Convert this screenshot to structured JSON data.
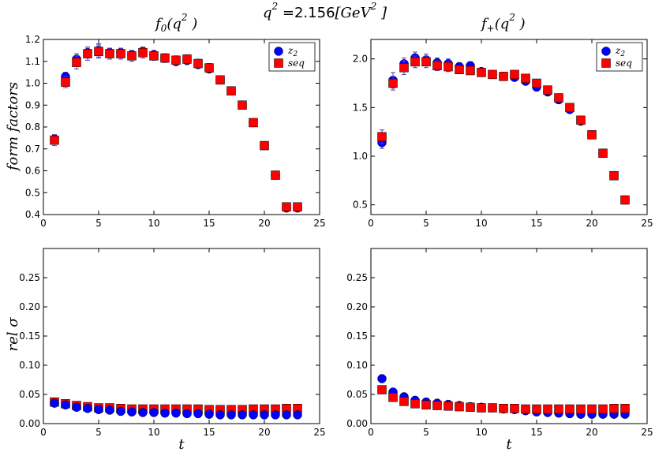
{
  "figure": {
    "suptitle_q": "q",
    "suptitle_exp": "2",
    "suptitle_eq": " =",
    "suptitle_value": "2.156",
    "suptitle_unit": "[GeV",
    "suptitle_unit_exp": "2",
    "suptitle_unit_close": " ]"
  },
  "colors": {
    "z2": "#0000ff",
    "seq": "#ff0000",
    "err": "#5a3db8"
  },
  "chart_data": [
    {
      "type": "scatter",
      "panel": "top-left",
      "title_main": "f",
      "title_sub": "0",
      "title_arg": "(q",
      "title_exp": "2",
      "title_close": " )",
      "ylabel": "form factors",
      "xlabel": "",
      "xlim": [
        0,
        25
      ],
      "ylim": [
        0.4,
        1.2
      ],
      "xticks": [
        0,
        5,
        10,
        15,
        20,
        25
      ],
      "yticks": [
        "0.4",
        "0.5",
        "0.6",
        "0.7",
        "0.8",
        "0.9",
        "1.0",
        "1.1",
        "1.2"
      ],
      "legend": [
        "z",
        "seq"
      ],
      "legend_z_sub": "2",
      "legend_loc": "top-right",
      "series": [
        {
          "name": "z2",
          "marker": "circle",
          "x": [
            1,
            2,
            3,
            4,
            5,
            6,
            7,
            8,
            9,
            10,
            11,
            12,
            13,
            14,
            15,
            16,
            17,
            18,
            19,
            20,
            21,
            22,
            23
          ],
          "y": [
            0.745,
            1.03,
            1.11,
            1.14,
            1.15,
            1.14,
            1.14,
            1.13,
            1.145,
            1.13,
            1.115,
            1.1,
            1.105,
            1.085,
            1.065,
            1.015,
            0.965,
            0.9,
            0.82,
            0.715,
            0.58,
            0.43,
            0.43
          ],
          "err": [
            0.02,
            0.02,
            0.025,
            0.025,
            0.03,
            0.02,
            0.02,
            0.02,
            0.02,
            0.02,
            0.02,
            0.02,
            0.02,
            0.015,
            0.015,
            0.015,
            0.012,
            0.012,
            0.012,
            0.012,
            0.01,
            0.01,
            0.01
          ]
        },
        {
          "name": "seq",
          "marker": "square",
          "x": [
            1,
            2,
            3,
            4,
            5,
            6,
            7,
            8,
            9,
            10,
            11,
            12,
            13,
            14,
            15,
            16,
            17,
            18,
            19,
            20,
            21,
            22,
            23
          ],
          "y": [
            0.74,
            1.005,
            1.095,
            1.135,
            1.145,
            1.135,
            1.135,
            1.125,
            1.14,
            1.125,
            1.115,
            1.105,
            1.11,
            1.09,
            1.07,
            1.015,
            0.965,
            0.9,
            0.82,
            0.715,
            0.58,
            0.435,
            0.435
          ],
          "err": [
            0.025,
            0.025,
            0.03,
            0.03,
            0.03,
            0.025,
            0.025,
            0.025,
            0.025,
            0.02,
            0.02,
            0.02,
            0.02,
            0.02,
            0.02,
            0.015,
            0.015,
            0.015,
            0.015,
            0.012,
            0.012,
            0.01,
            0.01
          ]
        }
      ]
    },
    {
      "type": "scatter",
      "panel": "top-right",
      "title_main": "f",
      "title_sub": "+",
      "title_arg": "(q",
      "title_exp": "2",
      "title_close": " )",
      "ylabel": "",
      "xlabel": "",
      "xlim": [
        0,
        25
      ],
      "ylim": [
        0.4,
        2.2
      ],
      "xticks": [
        0,
        5,
        10,
        15,
        20,
        25
      ],
      "yticks": [
        "0.5",
        "1.0",
        "1.5",
        "2.0"
      ],
      "ytick_values": [
        0.5,
        1.0,
        1.5,
        2.0
      ],
      "legend": [
        "z",
        "seq"
      ],
      "legend_z_sub": "2",
      "legend_loc": "top-right",
      "series": [
        {
          "name": "z2",
          "marker": "circle",
          "x": [
            1,
            2,
            3,
            4,
            5,
            6,
            7,
            8,
            9,
            10,
            11,
            12,
            13,
            14,
            15,
            16,
            17,
            18,
            19,
            20,
            21,
            22,
            23
          ],
          "y": [
            1.14,
            1.78,
            1.95,
            2.01,
            1.99,
            1.96,
            1.95,
            1.92,
            1.93,
            1.87,
            1.84,
            1.82,
            1.81,
            1.77,
            1.71,
            1.66,
            1.58,
            1.48,
            1.36,
            1.22,
            1.03,
            0.8,
            0.55
          ],
          "err": [
            0.06,
            0.08,
            0.06,
            0.06,
            0.06,
            0.05,
            0.05,
            0.04,
            0.04,
            0.03,
            0.03,
            0.03,
            0.03,
            0.03,
            0.03,
            0.03,
            0.03,
            0.03,
            0.02,
            0.02,
            0.02,
            0.02,
            0.02
          ]
        },
        {
          "name": "seq",
          "marker": "square",
          "x": [
            1,
            2,
            3,
            4,
            5,
            6,
            7,
            8,
            9,
            10,
            11,
            12,
            13,
            14,
            15,
            16,
            17,
            18,
            19,
            20,
            21,
            22,
            23
          ],
          "y": [
            1.2,
            1.75,
            1.91,
            1.97,
            1.97,
            1.93,
            1.92,
            1.89,
            1.88,
            1.86,
            1.84,
            1.82,
            1.84,
            1.8,
            1.75,
            1.68,
            1.6,
            1.5,
            1.37,
            1.22,
            1.03,
            0.8,
            0.55
          ],
          "err": [
            0.07,
            0.07,
            0.07,
            0.06,
            0.06,
            0.05,
            0.05,
            0.04,
            0.04,
            0.04,
            0.04,
            0.04,
            0.03,
            0.03,
            0.03,
            0.03,
            0.03,
            0.03,
            0.03,
            0.02,
            0.02,
            0.02,
            0.02
          ]
        }
      ]
    },
    {
      "type": "scatter",
      "panel": "bottom-left",
      "title_main": "",
      "ylabel": "rel σ",
      "xlabel": "t",
      "xlim": [
        0,
        25
      ],
      "ylim": [
        0,
        0.3
      ],
      "xticks": [
        0,
        5,
        10,
        15,
        20,
        25
      ],
      "yticks": [
        "0.00",
        "0.05",
        "0.10",
        "0.15",
        "0.20",
        "0.25"
      ],
      "ytick_values": [
        0,
        0.05,
        0.1,
        0.15,
        0.2,
        0.25
      ],
      "series": [
        {
          "name": "seq",
          "marker": "square",
          "x": [
            1,
            2,
            3,
            4,
            5,
            6,
            7,
            8,
            9,
            10,
            11,
            12,
            13,
            14,
            15,
            16,
            17,
            18,
            19,
            20,
            21,
            22,
            23
          ],
          "y": [
            0.037,
            0.034,
            0.031,
            0.029,
            0.027,
            0.027,
            0.026,
            0.025,
            0.025,
            0.025,
            0.025,
            0.025,
            0.025,
            0.025,
            0.024,
            0.024,
            0.024,
            0.024,
            0.025,
            0.025,
            0.025,
            0.026,
            0.026
          ]
        },
        {
          "name": "z2",
          "marker": "circle",
          "x": [
            1,
            2,
            3,
            4,
            5,
            6,
            7,
            8,
            9,
            10,
            11,
            12,
            13,
            14,
            15,
            16,
            17,
            18,
            19,
            20,
            21,
            22,
            23
          ],
          "y": [
            0.035,
            0.032,
            0.028,
            0.026,
            0.024,
            0.023,
            0.021,
            0.02,
            0.019,
            0.019,
            0.018,
            0.018,
            0.017,
            0.017,
            0.016,
            0.015,
            0.015,
            0.015,
            0.015,
            0.015,
            0.015,
            0.015,
            0.015
          ]
        }
      ]
    },
    {
      "type": "scatter",
      "panel": "bottom-right",
      "title_main": "",
      "ylabel": "",
      "xlabel": "t",
      "xlim": [
        0,
        25
      ],
      "ylim": [
        0,
        0.3
      ],
      "xticks": [
        0,
        5,
        10,
        15,
        20,
        25
      ],
      "yticks": [
        "0.00",
        "0.05",
        "0.10",
        "0.15",
        "0.20",
        "0.25"
      ],
      "ytick_values": [
        0,
        0.05,
        0.1,
        0.15,
        0.2,
        0.25
      ],
      "series": [
        {
          "name": "z2",
          "marker": "circle",
          "x": [
            1,
            2,
            3,
            4,
            5,
            6,
            7,
            8,
            9,
            10,
            11,
            12,
            13,
            14,
            15,
            16,
            17,
            18,
            19,
            20,
            21,
            22,
            23
          ],
          "y": [
            0.077,
            0.054,
            0.046,
            0.04,
            0.037,
            0.035,
            0.033,
            0.031,
            0.029,
            0.028,
            0.027,
            0.025,
            0.024,
            0.022,
            0.02,
            0.019,
            0.018,
            0.017,
            0.016,
            0.016,
            0.016,
            0.016,
            0.016
          ]
        },
        {
          "name": "seq",
          "marker": "square",
          "x": [
            1,
            2,
            3,
            4,
            5,
            6,
            7,
            8,
            9,
            10,
            11,
            12,
            13,
            14,
            15,
            16,
            17,
            18,
            19,
            20,
            21,
            22,
            23
          ],
          "y": [
            0.058,
            0.045,
            0.038,
            0.034,
            0.032,
            0.031,
            0.03,
            0.029,
            0.028,
            0.027,
            0.027,
            0.026,
            0.026,
            0.025,
            0.025,
            0.025,
            0.025,
            0.025,
            0.025,
            0.025,
            0.025,
            0.026,
            0.026
          ]
        }
      ]
    }
  ]
}
